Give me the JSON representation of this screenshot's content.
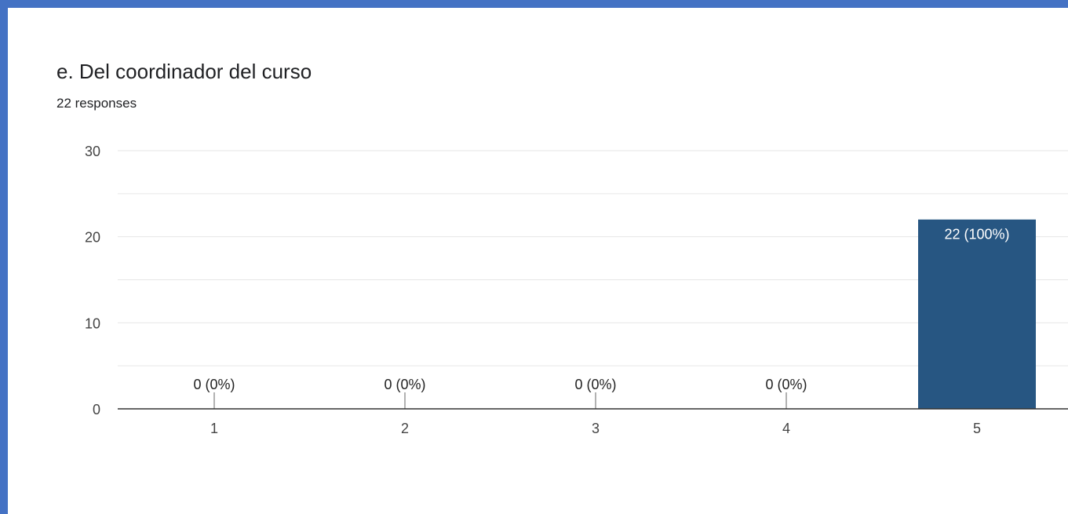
{
  "title": "e. Del coordinador del curso",
  "subtitle": "22 responses",
  "colors": {
    "frame": "#4472c4",
    "bar": "#275682",
    "grid": "#e6e6e6",
    "axis": "#333333"
  },
  "chart_data": {
    "type": "bar",
    "categories": [
      "1",
      "2",
      "3",
      "4",
      "5"
    ],
    "values": [
      0,
      0,
      0,
      0,
      22
    ],
    "data_labels": [
      "0 (0%)",
      "0 (0%)",
      "0 (0%)",
      "0 (0%)",
      "22 (100%)"
    ],
    "ylim": [
      0,
      30
    ],
    "y_ticks": [
      "0",
      "10",
      "20",
      "30"
    ],
    "grid": true,
    "legend": "none"
  }
}
